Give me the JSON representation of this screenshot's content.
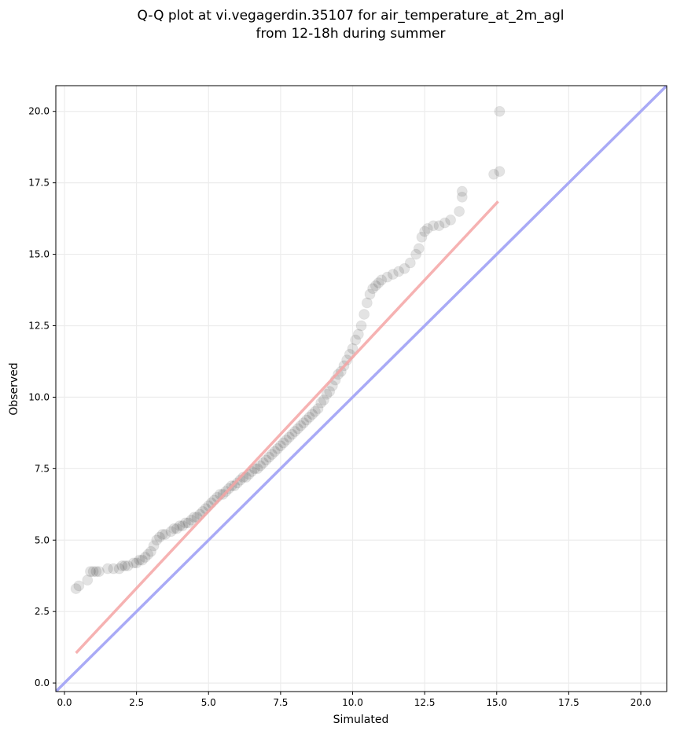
{
  "chart_data": {
    "type": "scatter",
    "title_lines": [
      "Q-Q plot at vi.vegagerdin.35107 for air_temperature_at_2m_agl",
      "from 12-18h during summer"
    ],
    "xlabel": "Simulated",
    "ylabel": "Observed",
    "xlim": [
      -0.3,
      20.9
    ],
    "ylim": [
      -0.3,
      20.9
    ],
    "xticks": [
      0.0,
      2.5,
      5.0,
      7.5,
      10.0,
      12.5,
      15.0,
      17.5,
      20.0
    ],
    "yticks": [
      0.0,
      2.5,
      5.0,
      7.5,
      10.0,
      12.5,
      15.0,
      17.5,
      20.0
    ],
    "xtick_labels": [
      "0.0",
      "2.5",
      "5.0",
      "7.5",
      "10.0",
      "12.5",
      "15.0",
      "17.5",
      "20.0"
    ],
    "ytick_labels": [
      "0.0",
      "2.5",
      "5.0",
      "7.5",
      "10.0",
      "12.5",
      "15.0",
      "17.5",
      "20.0"
    ],
    "grid": true,
    "colors": {
      "points": "#000000",
      "fit_line": "#f4a4a4",
      "identity_line": "#a9aaf6",
      "grid": "#ececec"
    },
    "identity_line": {
      "x": [
        -0.3,
        20.9
      ],
      "y": [
        -0.3,
        20.9
      ]
    },
    "fit_line": {
      "x": [
        0.4,
        15.05
      ],
      "y": [
        1.05,
        16.85
      ]
    },
    "quantiles": {
      "x": [
        0.4,
        0.5,
        0.8,
        0.9,
        1.0,
        1.1,
        1.2,
        1.5,
        1.7,
        1.9,
        2.0,
        2.1,
        2.2,
        2.4,
        2.5,
        2.6,
        2.7,
        2.8,
        2.9,
        3.0,
        3.1,
        3.2,
        3.3,
        3.4,
        3.5,
        3.7,
        3.8,
        3.9,
        4.0,
        4.1,
        4.2,
        4.3,
        4.4,
        4.5,
        4.6,
        4.7,
        4.8,
        4.9,
        5.0,
        5.1,
        5.2,
        5.3,
        5.4,
        5.5,
        5.6,
        5.7,
        5.8,
        5.9,
        6.0,
        6.1,
        6.2,
        6.3,
        6.4,
        6.5,
        6.6,
        6.7,
        6.8,
        6.9,
        7.0,
        7.1,
        7.2,
        7.3,
        7.4,
        7.5,
        7.6,
        7.7,
        7.8,
        7.9,
        8.0,
        8.1,
        8.2,
        8.3,
        8.4,
        8.5,
        8.6,
        8.7,
        8.8,
        8.9,
        9.0,
        9.1,
        9.2,
        9.3,
        9.4,
        9.5,
        9.6,
        9.7,
        9.8,
        9.9,
        10.0,
        10.1,
        10.2,
        10.3,
        10.4,
        10.5,
        10.6,
        10.7,
        10.8,
        10.9,
        11.0,
        11.2,
        11.4,
        11.6,
        11.8,
        12.0,
        12.2,
        12.3,
        12.4,
        12.5,
        12.6,
        12.8,
        13.0,
        13.2,
        13.4,
        13.7,
        13.8,
        13.8,
        14.9,
        15.1,
        15.1
      ],
      "y": [
        3.3,
        3.4,
        3.6,
        3.9,
        3.9,
        3.9,
        3.9,
        4.0,
        4.0,
        4.0,
        4.1,
        4.1,
        4.1,
        4.2,
        4.2,
        4.3,
        4.3,
        4.4,
        4.5,
        4.6,
        4.8,
        5.0,
        5.1,
        5.2,
        5.2,
        5.3,
        5.4,
        5.4,
        5.5,
        5.5,
        5.6,
        5.6,
        5.7,
        5.8,
        5.8,
        5.9,
        6.0,
        6.1,
        6.2,
        6.3,
        6.4,
        6.5,
        6.6,
        6.6,
        6.7,
        6.8,
        6.9,
        6.9,
        7.0,
        7.1,
        7.2,
        7.2,
        7.3,
        7.4,
        7.5,
        7.5,
        7.6,
        7.7,
        7.8,
        7.9,
        8.0,
        8.1,
        8.2,
        8.3,
        8.4,
        8.5,
        8.6,
        8.7,
        8.8,
        8.9,
        9.0,
        9.1,
        9.2,
        9.3,
        9.4,
        9.5,
        9.6,
        9.8,
        9.9,
        10.1,
        10.2,
        10.4,
        10.6,
        10.8,
        10.9,
        11.1,
        11.3,
        11.5,
        11.7,
        12.0,
        12.2,
        12.5,
        12.9,
        13.3,
        13.6,
        13.8,
        13.9,
        14.0,
        14.1,
        14.2,
        14.3,
        14.4,
        14.5,
        14.7,
        15.0,
        15.2,
        15.6,
        15.8,
        15.9,
        16.0,
        16.0,
        16.1,
        16.2,
        16.5,
        17.0,
        17.2,
        17.8,
        17.9,
        20.0
      ]
    }
  }
}
